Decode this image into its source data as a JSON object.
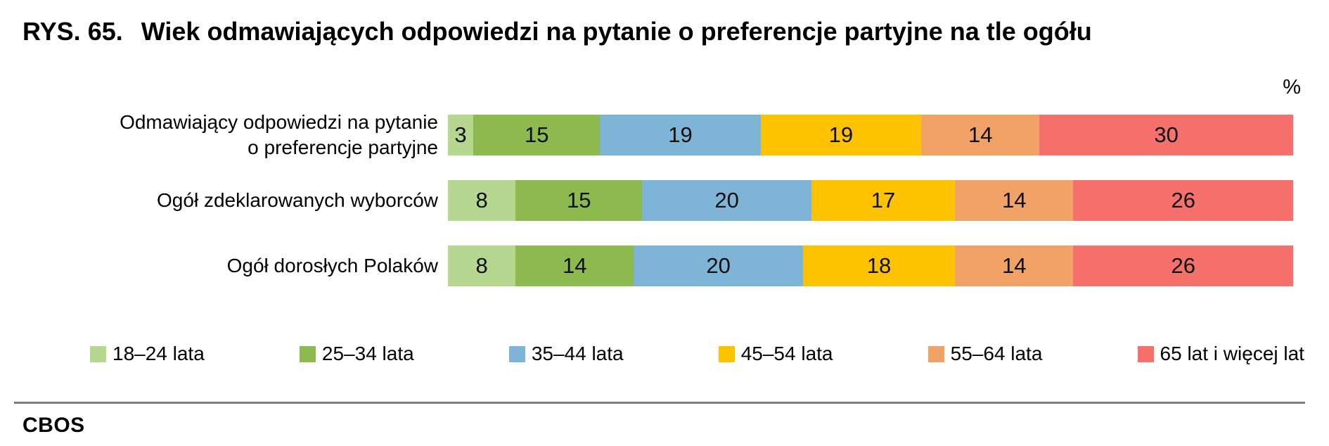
{
  "title": {
    "prefix": "RYS. 65.",
    "text": "Wiek odmawiających odpowiedzi na pytanie o preferencje partyjne na tle ogółu"
  },
  "unit_label": "%",
  "footer": {
    "brand": "CBOS"
  },
  "chart_data": {
    "type": "bar",
    "stacked": true,
    "orientation": "horizontal",
    "unit": "%",
    "xlim": [
      0,
      100
    ],
    "grid": false,
    "legend_position": "bottom",
    "categories": [
      "Odmawiający odpowiedzi na pytanie\no preferencje partyjne",
      "Ogół zdeklarowanych wyborców",
      "Ogół dorosłych Polaków"
    ],
    "series": [
      {
        "name": "18–24 lata",
        "color": "#b6d78f",
        "values": [
          3,
          8,
          8
        ]
      },
      {
        "name": "25–34 lata",
        "color": "#8cba4e",
        "values": [
          15,
          15,
          14
        ]
      },
      {
        "name": "35–44 lata",
        "color": "#7eb5d7",
        "values": [
          19,
          20,
          20
        ]
      },
      {
        "name": "45–54 lata",
        "color": "#fdc300",
        "values": [
          19,
          17,
          18
        ]
      },
      {
        "name": "55–64 lata",
        "color": "#f1a266",
        "values": [
          14,
          14,
          14
        ]
      },
      {
        "name": "65 lat i więcej lat",
        "color": "#f7716c",
        "values": [
          30,
          26,
          26
        ]
      }
    ]
  }
}
